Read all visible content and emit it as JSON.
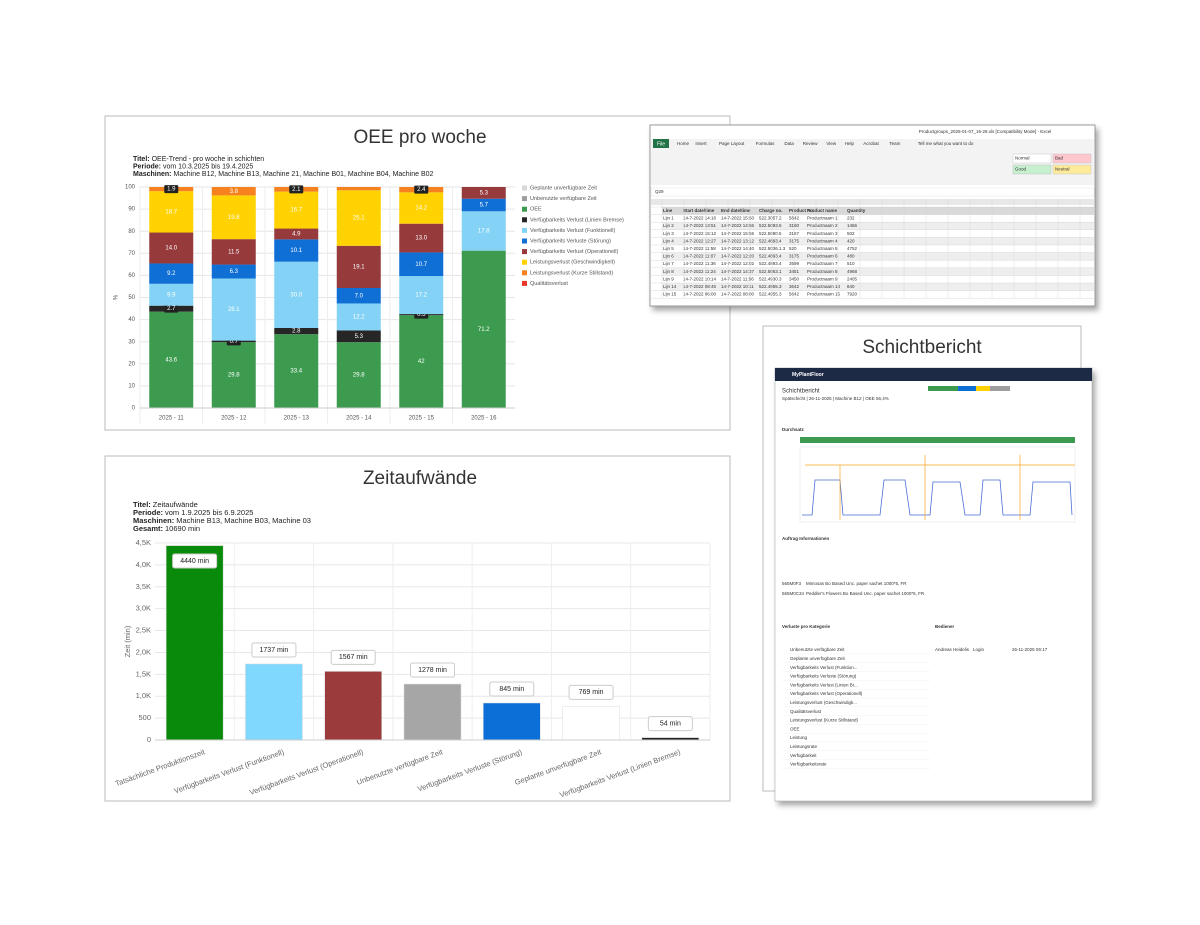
{
  "chart_data": [
    {
      "type": "stacked_bar",
      "title": "OEE pro woche",
      "subtitle": [
        {
          "label": "Titel:",
          "value": "OEE-Trend - pro woche in schichten"
        },
        {
          "label": "Periode:",
          "value": "vom 10.3.2025 bis 19.4.2025"
        },
        {
          "label": "Maschinen:",
          "value": "Machine B12, Machine B13, Machine 21, Machine B01, Machine B04, Machine B02"
        }
      ],
      "y_label": "%",
      "categories": [
        "2025 - 11",
        "2025 - 12",
        "2025 - 13",
        "2025 - 14",
        "2025 - 15",
        "2025 - 16"
      ],
      "series": [
        {
          "name": "Geplante unverfügbare Zeit",
          "color": "#d9d9d9",
          "values": [
            0,
            0,
            0,
            0,
            0,
            0
          ]
        },
        {
          "name": "Unbenutzte verfügbare Zeit",
          "color": "#9e9e9e",
          "values": [
            0,
            0,
            0,
            0,
            0,
            0
          ]
        },
        {
          "name": "OEE",
          "color": "#3d9b50",
          "values": [
            43.6,
            29.8,
            33.4,
            29.8,
            42,
            71.2
          ]
        },
        {
          "name": "Verfügbarkeits Verlust (Linien Bremse)",
          "color": "#262626",
          "values": [
            2.7,
            0.7,
            2.8,
            5.3,
            0.5,
            0
          ]
        },
        {
          "name": "Verfügbarkeits Verlust (Funktionell)",
          "color": "#84d3f6",
          "values": [
            9.9,
            28.1,
            30.0,
            12.2,
            17.2,
            17.8
          ],
          "value_labels": [
            "9.9",
            "28.1",
            "30.0",
            "12.2",
            "17.2",
            "17.8"
          ]
        },
        {
          "name": "Verfügbarkeits Verluste (Störung)",
          "color": "#0f6fd4",
          "values": [
            9.2,
            6.3,
            10.1,
            7.0,
            10.7,
            5.7
          ],
          "value_labels": [
            "9.2",
            "6.3",
            "10.1",
            "7.0",
            "10.7",
            "5.7"
          ]
        },
        {
          "name": "Verfügbarkeits Verlust (Operationell)",
          "color": "#963a3c",
          "values": [
            14.0,
            11.5,
            4.9,
            19.1,
            13.0,
            5.3
          ],
          "value_labels": [
            "14.0",
            "11.5",
            "4.9",
            "19.1",
            "13.0",
            "5.3"
          ]
        },
        {
          "name": "Leistungsverlust (Geschwindigkeit)",
          "color": "#ffd200",
          "values": [
            18.7,
            19.8,
            16.7,
            25.1,
            14.2,
            0
          ]
        },
        {
          "name": "Leistungsverlust (Kurze Stillstand)",
          "color": "#f5821f",
          "values": [
            1.9,
            3.8,
            2.1,
            1.5,
            2.4,
            0
          ],
          "value_labels": [
            "1.9",
            "3.8",
            "2.1",
            null,
            "2.4",
            null
          ]
        },
        {
          "name": "Qualitätsverlust",
          "color": "#e8372b",
          "values": [
            0,
            0,
            0,
            0,
            0,
            0
          ]
        }
      ],
      "ylim": [
        0,
        100
      ],
      "yticks": [
        0,
        10,
        20,
        30,
        40,
        50,
        60,
        70,
        80,
        90,
        100
      ],
      "grid": true,
      "legend": "right"
    },
    {
      "type": "bar",
      "title": "Zeitaufwände",
      "subtitle": [
        {
          "label": "Titel:",
          "value": "Zeitaufwände"
        },
        {
          "label": "Periode:",
          "value": "vom 1.9.2025 bis 6.9.2025"
        },
        {
          "label": "Maschinen:",
          "value": "Machine B13, Machine B03, Machine 03"
        },
        {
          "label": "Gesamt:",
          "value": "10690 min"
        }
      ],
      "y_label": "Zeit (min)",
      "categories": [
        "Tatsächliche Produktionszeit",
        "Verfügbarkeits Verlust (Funktionell)",
        "Verfügbarkeits Verlust (Operationell)",
        "Unbenutzte verfügbare Zeit",
        "Verfügbarkeits Verluste (Störung)",
        "Geplante unverfügbare Zeit",
        "Verfügbarkeits Verlust (Linien Bremse)"
      ],
      "values": [
        4440,
        1737,
        1567,
        1278,
        845,
        769,
        54
      ],
      "value_labels": [
        "4440 min",
        "1737 min",
        "1567 min",
        "1278 min",
        "845 min",
        "769 min",
        "54 min"
      ],
      "colors": [
        "#0a8a0a",
        "#80d8ff",
        "#9b3b3b",
        "#a6a6a6",
        "#0a6fd6",
        "#ffffff",
        "#222222"
      ],
      "ylim": [
        0,
        4500
      ],
      "yticks": [
        0,
        500,
        {
          "value": 1000,
          "label": "1,0K"
        },
        {
          "value": 1500,
          "label": "1,5K"
        },
        {
          "value": 2000,
          "label": "2,0K"
        },
        {
          "value": 2500,
          "label": "2,5K"
        },
        {
          "value": 3000,
          "label": "3,0K"
        },
        {
          "value": 3500,
          "label": "3,5K"
        },
        {
          "value": 4000,
          "label": "4,0K"
        },
        {
          "value": 4500,
          "label": "4,5K"
        }
      ],
      "grid": true
    }
  ],
  "excel": {
    "title": "Productgroups_2025-01-07_16-28.xls [Compatibility Mode] - Excel",
    "tabs": [
      "File",
      "Home",
      "Insert",
      "Page Layout",
      "Formulas",
      "Data",
      "Review",
      "View",
      "Help",
      "Acrobat",
      "Team"
    ],
    "search": "Tell me what you want to do",
    "styles": [
      "Normal",
      "Bad",
      "Good",
      "Neutral"
    ],
    "cell_ref": "Q29",
    "columns": [
      "Line",
      "Start date/time",
      "End date/time",
      "Charge no.",
      "Product no.",
      "Product name",
      "Quantity"
    ],
    "rows": [
      [
        "Lijn 1",
        "14-7-2022 14:16",
        "14-7-2022 15:50",
        "522.3057.2",
        "5642",
        "Productnaam 1",
        "232"
      ],
      [
        "Lijn 2",
        "14-7-2022 13:51",
        "14-7-2022 14:56",
        "522.5093.5",
        "3160",
        "Productnaam 2",
        "1466"
      ],
      [
        "Lijn 3",
        "14-7-2022 15:12",
        "14-7-2022 15:55",
        "522.5080.5",
        "3167",
        "Productnaam 3",
        "502"
      ],
      [
        "Lijn 4",
        "14-7-2022 12:27",
        "14-7-2022 13:12",
        "522.4893.4",
        "3175",
        "Productnaam 4",
        "420"
      ],
      [
        "Lijn 5",
        "14-7-2022 11:58",
        "14-7-2022 14:40",
        "522.5036.1.3",
        "520",
        "Productnaam 5",
        "4752"
      ],
      [
        "Lijn 6",
        "14-7-2022 11:07",
        "14-7-2022 12:20",
        "522.4893.4",
        "3175",
        "Productnaam 6",
        "480"
      ],
      [
        "Lijn 7",
        "14-7-2022 11:36",
        "14-7-2022 12:02",
        "522.4893.4",
        "3599",
        "Productnaam 7",
        "510"
      ],
      [
        "Lijn 8",
        "14-7-2022 11:24",
        "14-7-2022 14:37",
        "522.5063.1",
        "3451",
        "Productnaam 8",
        "4968"
      ],
      [
        "Lijn 9",
        "14-7-2022 10:14",
        "14-7-2022 11:56",
        "522.4930.3",
        "3450",
        "Productnaam 9",
        "2405"
      ],
      [
        "Lijn 14",
        "14-7-2022 08:45",
        "14-7-2022 10:11",
        "522.4955.3",
        "3642",
        "Productnaam 14",
        "840"
      ],
      [
        "Lijn 15",
        "14-7-2022 06:00",
        "14-7-2022 08:00",
        "522.4955.3",
        "5642",
        "Productnaam 15",
        "7920"
      ]
    ]
  },
  "report": {
    "panel_title": "Schichtbericht",
    "app": "MyPlantFloor",
    "heading": "Schichtbericht",
    "subheading": "Spätschicht | 26-11-2025 | Machine B12 | OEE 56,4%",
    "sections": [
      "Durchsatz",
      "Auftrag Informationen",
      "Verluste pro Kategorie",
      "Bediener"
    ],
    "orders": [
      [
        "565M0F3",
        "Mimosas Bo Based Unc. paper sachet 1000*5, FR"
      ],
      [
        "565M0C34",
        "Peddler's Flowers Bo Based Unc. paper sachet 1000*5, FR"
      ]
    ],
    "operator": [
      "Andreas Heidelis",
      "Login",
      "26-11-2025 06:17"
    ],
    "loss_categories": [
      "Unbenutzte verfügbare Zeit",
      "Geplante unverfügbare Zeit",
      "Verfügbarkeits Verlust (Funktion...",
      "Verfügbarkeits Verluste (Störung)",
      "Verfügbarkeits Verlust (Linien Br...",
      "Verfügbarkeits Verlust (Operationell)",
      "Leistungsverlust (Geschwindigk...",
      "Qualitätsverlust",
      "Leistungsverlust (Kurze Stillstand)",
      "OEE",
      "Leistung",
      "Leistungsrate",
      "Verfügbarkeit",
      "Verfügbarkeitsrate"
    ]
  }
}
